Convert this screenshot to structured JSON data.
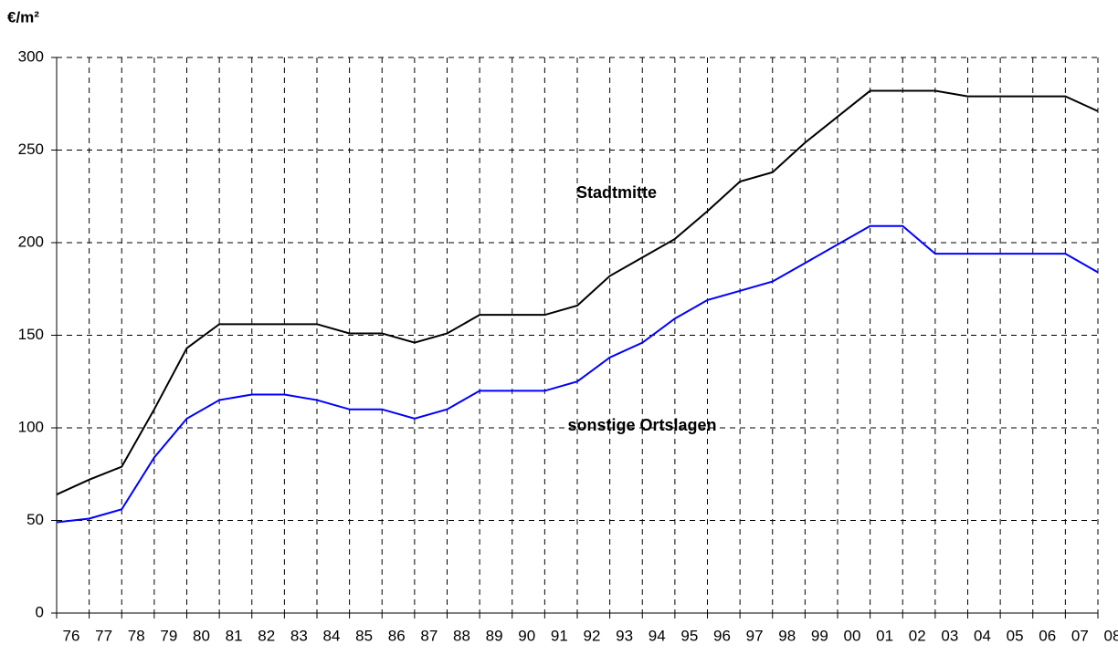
{
  "chart_data": {
    "type": "line",
    "y_label": "€/m²",
    "categories": [
      "76",
      "77",
      "78",
      "79",
      "80",
      "81",
      "82",
      "83",
      "84",
      "85",
      "86",
      "87",
      "88",
      "89",
      "90",
      "91",
      "92",
      "93",
      "94",
      "95",
      "96",
      "97",
      "98",
      "99",
      "00",
      "01",
      "02",
      "03",
      "04",
      "05",
      "06",
      "07",
      "08"
    ],
    "series": [
      {
        "name": "Stadtmitte",
        "color": "#000000",
        "values": [
          64,
          72,
          79,
          110,
          143,
          156,
          156,
          156,
          156,
          151,
          151,
          146,
          151,
          161,
          161,
          161,
          166,
          182,
          192,
          202,
          217,
          233,
          238,
          254,
          268,
          282,
          282,
          282,
          279,
          279,
          279,
          279,
          271
        ]
      },
      {
        "name": "sonstige Ortslagen",
        "color": "#0000ff",
        "values": [
          49,
          51,
          56,
          84,
          105,
          115,
          118,
          118,
          115,
          110,
          110,
          105,
          110,
          120,
          120,
          120,
          125,
          138,
          146,
          159,
          169,
          174,
          179,
          189,
          199,
          209,
          209,
          194,
          194,
          194,
          194,
          194,
          184
        ]
      }
    ],
    "ylim": [
      0,
      300
    ],
    "yticks": [
      0,
      50,
      100,
      150,
      200,
      250,
      300
    ],
    "grid": true
  }
}
